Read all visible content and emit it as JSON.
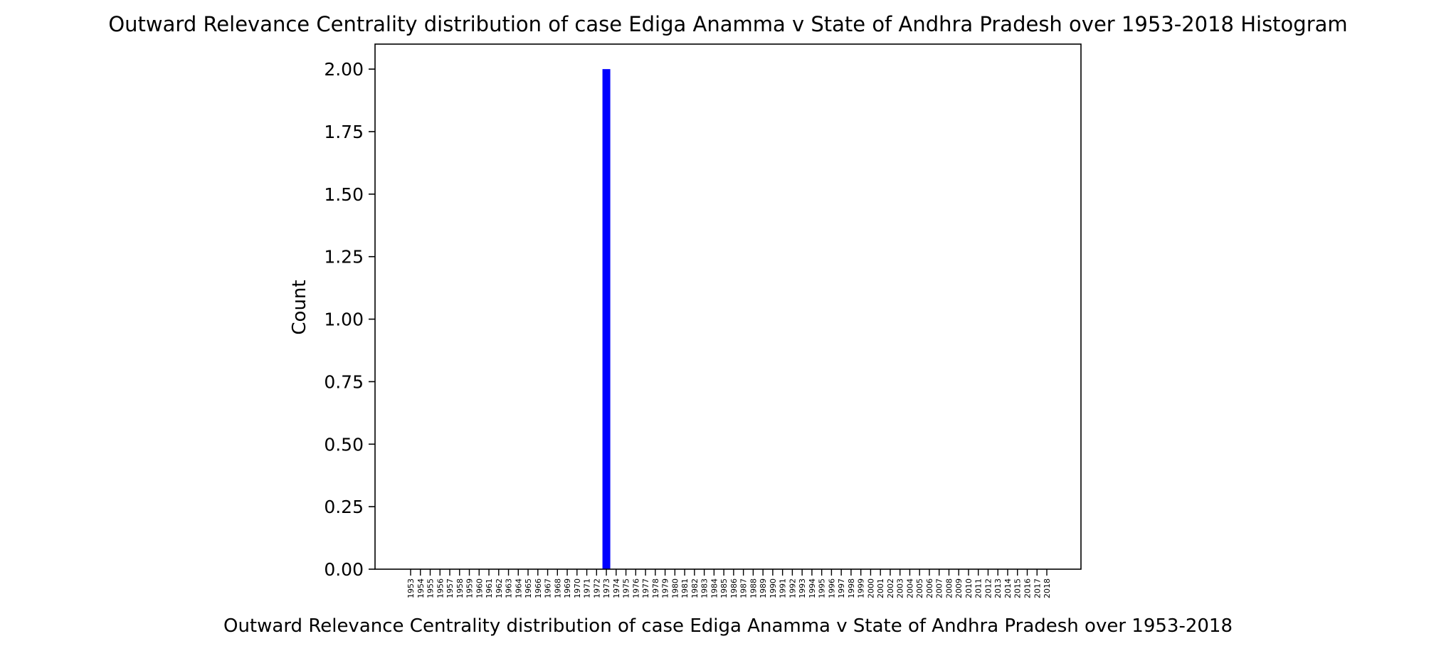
{
  "chart_data": {
    "type": "bar",
    "title": "Outward Relevance Centrality distribution of case Ediga Anamma v State of Andhra Pradesh over 1953-2018 Histogram",
    "xlabel": "Outward Relevance Centrality distribution of case Ediga Anamma v State of Andhra Pradesh over 1953-2018",
    "ylabel": "Count",
    "ylim": [
      0,
      2.1
    ],
    "yticks": [
      "0.00",
      "0.25",
      "0.50",
      "0.75",
      "1.00",
      "1.25",
      "1.50",
      "1.75",
      "2.00"
    ],
    "categories": [
      "1953",
      "1954",
      "1955",
      "1956",
      "1957",
      "1958",
      "1959",
      "1960",
      "1961",
      "1962",
      "1963",
      "1964",
      "1965",
      "1966",
      "1967",
      "1968",
      "1969",
      "1970",
      "1971",
      "1972",
      "1973",
      "1974",
      "1975",
      "1976",
      "1977",
      "1978",
      "1979",
      "1980",
      "1981",
      "1982",
      "1983",
      "1984",
      "1985",
      "1986",
      "1987",
      "1988",
      "1989",
      "1990",
      "1991",
      "1992",
      "1993",
      "1994",
      "1995",
      "1996",
      "1997",
      "1998",
      "1999",
      "2000",
      "2001",
      "2002",
      "2003",
      "2004",
      "2005",
      "2006",
      "2007",
      "2008",
      "2009",
      "2010",
      "2011",
      "2012",
      "2013",
      "2014",
      "2015",
      "2016",
      "2017",
      "2018"
    ],
    "values": [
      0,
      0,
      0,
      0,
      0,
      0,
      0,
      0,
      0,
      0,
      0,
      0,
      0,
      0,
      0,
      0,
      0,
      0,
      0,
      0,
      2,
      0,
      0,
      0,
      0,
      0,
      0,
      0,
      0,
      0,
      0,
      0,
      0,
      0,
      0,
      0,
      0,
      0,
      0,
      0,
      0,
      0,
      0,
      0,
      0,
      0,
      0,
      0,
      0,
      0,
      0,
      0,
      0,
      0,
      0,
      0,
      0,
      0,
      0,
      0,
      0,
      0,
      0,
      0,
      0,
      0
    ],
    "bar_color": "#0000ff",
    "grid": false,
    "legend": null
  }
}
